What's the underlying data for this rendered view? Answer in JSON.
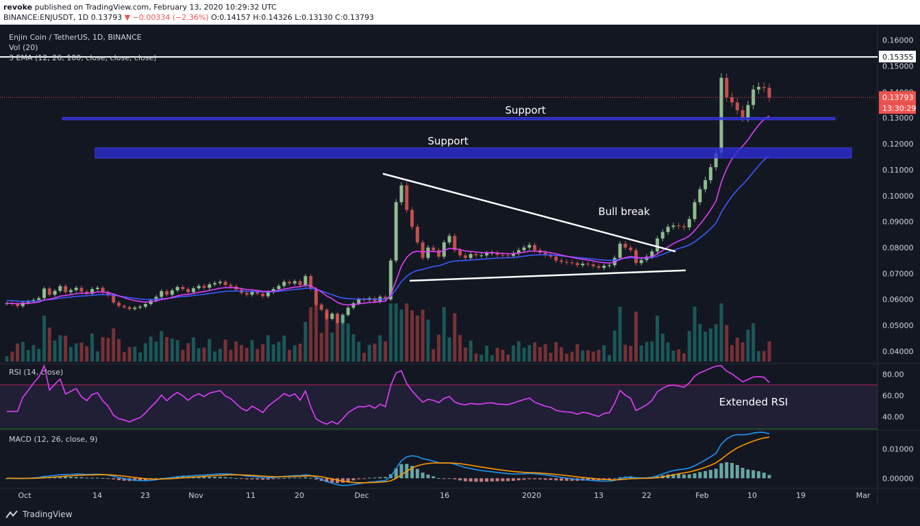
{
  "header": {
    "publisher": "revoke",
    "published_text": "published on TradingView.com, February 13, 2020 10:29:32 UTC",
    "symbol": "BINANCE:ENJUSDT, 1D",
    "last": "0.13793",
    "change": "▼ −0.00334 (−2.36%)",
    "ohlc": "O:0.14157 H:0.14326 L:0.13130 C:0.13793"
  },
  "legend": {
    "title": "Enjin Coin / TetherUS, 1D, BINANCE",
    "vol": "Vol (20)",
    "ema": "3 EMA (12, 26, 100, close, close, close)",
    "rsi": "RSI (14, close)",
    "macd": "MACD (12, 26, close, 9)"
  },
  "annotations": {
    "support_upper": "Support",
    "support_lower": "Support",
    "bull_break": "Bull break",
    "extended_rsi": "Extended RSI"
  },
  "price_axis": {
    "ticks": [
      "0.16000",
      "0.15000",
      "0.14000",
      "0.13000",
      "0.12000",
      "0.11000",
      "0.10000",
      "0.09000",
      "0.08000",
      "0.07000",
      "0.06000",
      "0.05000",
      "0.04000"
    ],
    "resistance_label": "0.15355",
    "last_label": "0.13793",
    "countdown_label": "13:30:29"
  },
  "rsi_axis": {
    "ticks": [
      "80.00",
      "60.00",
      "40.00"
    ]
  },
  "macd_axis": {
    "ticks": [
      "0.01000",
      "0.00000"
    ]
  },
  "time_axis": {
    "labels": [
      "Oct",
      "14",
      "23",
      "Nov",
      "11",
      "20",
      "Dec",
      "16",
      "2020",
      "13",
      "22",
      "Feb",
      "10",
      "19",
      "Mar"
    ]
  },
  "brand": {
    "name": "TradingView"
  },
  "colors": {
    "bg": "#131722",
    "up": "#8fbc8f",
    "down": "#c0504d",
    "ema12": "#e040fb",
    "ema26": "#3d5afe",
    "rsi": "#e040fb",
    "support": "#2c2cd6",
    "macd": "#2196f3",
    "signal": "#ff9800",
    "accent": "#ef5350"
  },
  "chart_data": {
    "type": "candlestick",
    "title": "Enjin Coin / TetherUS, 1D, BINANCE",
    "ylim": [
      0.036,
      0.166
    ],
    "resistance": 0.15355,
    "supports": [
      [
        0.1293,
        0.1302
      ],
      [
        0.1145,
        0.1185
      ]
    ],
    "triangle_upper": [
      [
        0.1085,
        0.0785
      ]
    ],
    "triangle_lower": [
      [
        0.0672,
        0.0712
      ]
    ],
    "closes": [
      0.0585,
      0.0582,
      0.0574,
      0.0588,
      0.0592,
      0.0598,
      0.0605,
      0.0642,
      0.0618,
      0.0633,
      0.0651,
      0.0628,
      0.0636,
      0.0645,
      0.063,
      0.0622,
      0.064,
      0.0645,
      0.0628,
      0.0615,
      0.0588,
      0.0575,
      0.057,
      0.0563,
      0.0568,
      0.0572,
      0.0582,
      0.0596,
      0.061,
      0.0632,
      0.0618,
      0.0635,
      0.0648,
      0.064,
      0.0628,
      0.0643,
      0.0652,
      0.0645,
      0.0658,
      0.0663,
      0.0668,
      0.0656,
      0.065,
      0.0638,
      0.0625,
      0.0618,
      0.063,
      0.0622,
      0.0612,
      0.0628,
      0.064,
      0.0652,
      0.0668,
      0.0662,
      0.067,
      0.0655,
      0.069,
      0.064,
      0.058,
      0.056,
      0.0525,
      0.0545,
      0.051,
      0.054,
      0.0568,
      0.0585,
      0.06,
      0.0598,
      0.0605,
      0.0592,
      0.061,
      0.06,
      0.075,
      0.0975,
      0.104,
      0.0945,
      0.088,
      0.082,
      0.076,
      0.08,
      0.079,
      0.0765,
      0.082,
      0.0845,
      0.079,
      0.077,
      0.076,
      0.0775,
      0.077,
      0.077,
      0.0778,
      0.078,
      0.0772,
      0.077,
      0.0768,
      0.0778,
      0.079,
      0.08,
      0.081,
      0.079,
      0.078,
      0.077,
      0.0765,
      0.075,
      0.0745,
      0.0742,
      0.074,
      0.0732,
      0.0738,
      0.0735,
      0.0728,
      0.0722,
      0.073,
      0.0732,
      0.076,
      0.0815,
      0.08,
      0.079,
      0.074,
      0.0752,
      0.0765,
      0.0785,
      0.0835,
      0.086,
      0.088,
      0.0885,
      0.0882,
      0.0878,
      0.091,
      0.0975,
      0.1025,
      0.106,
      0.111,
      0.1165,
      0.1455,
      0.138,
      0.136,
      0.133,
      0.13,
      0.135,
      0.141,
      0.142,
      0.1416,
      0.1379
    ],
    "rsi": {
      "upper": 70,
      "lower": 30,
      "ylim": [
        30,
        88
      ]
    },
    "macd": {
      "ylim": [
        -0.0032,
        0.0155
      ]
    }
  }
}
